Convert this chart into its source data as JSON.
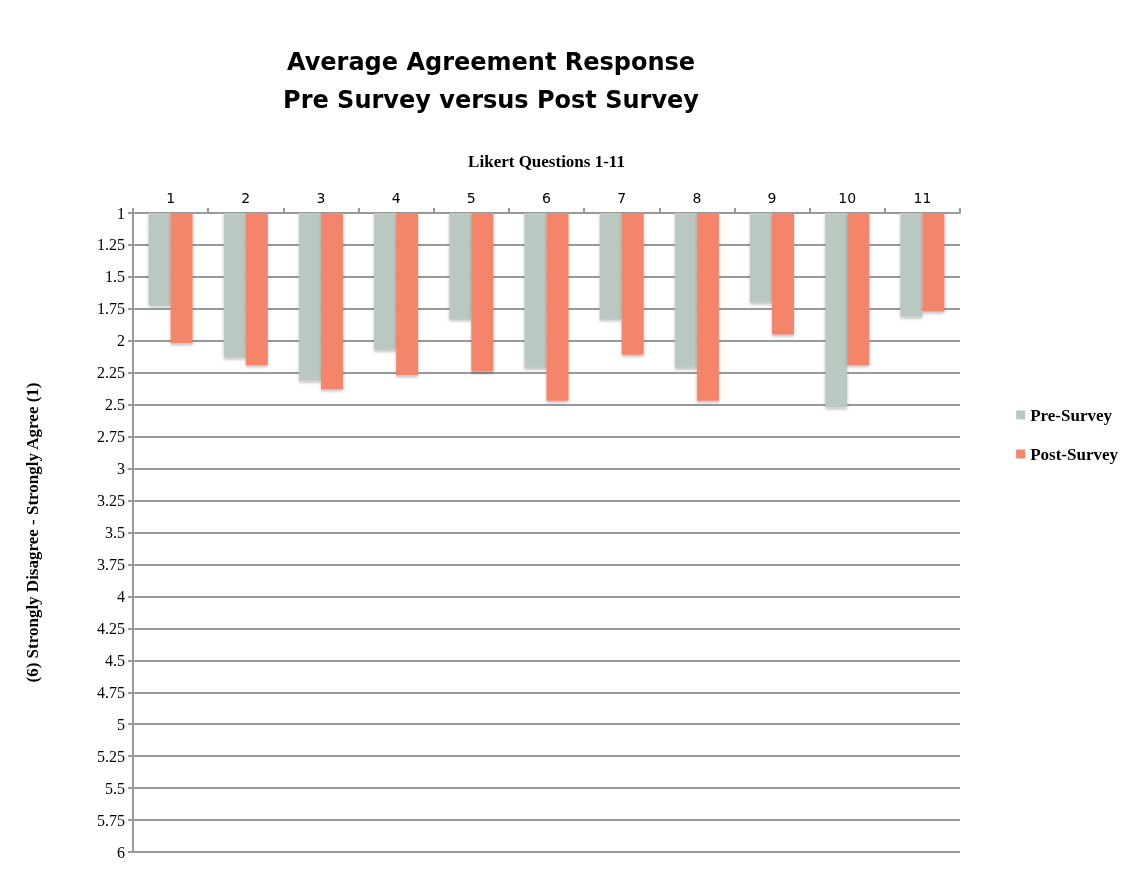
{
  "chart_data": {
    "type": "bar",
    "title": "Average Agreement Response\nPre Survey versus Post Survey",
    "xlabel": "Likert Questions 1-11",
    "ylabel": "(6) Strongly Disagree - Strongly Agree (1)",
    "categories": [
      "1",
      "2",
      "3",
      "4",
      "5",
      "6",
      "7",
      "8",
      "9",
      "10",
      "11"
    ],
    "series": [
      {
        "name": "Pre-Survey",
        "color": "#b9c8c0",
        "values": [
          1.72,
          2.13,
          2.31,
          2.07,
          1.83,
          2.21,
          1.83,
          2.21,
          1.7,
          2.52,
          1.81
        ]
      },
      {
        "name": "Post-Survey",
        "color": "#f4846a",
        "values": [
          2.02,
          2.19,
          2.38,
          2.27,
          2.24,
          2.47,
          2.11,
          2.47,
          1.95,
          2.19,
          1.77
        ]
      }
    ],
    "ylim": [
      6,
      1
    ],
    "yticks": [
      1,
      1.25,
      1.5,
      1.75,
      2,
      2.25,
      2.5,
      2.75,
      3,
      3.25,
      3.5,
      3.75,
      4,
      4.25,
      4.5,
      4.75,
      5,
      5.25,
      5.5,
      5.75,
      6
    ],
    "grid": "y",
    "legend": "right"
  }
}
